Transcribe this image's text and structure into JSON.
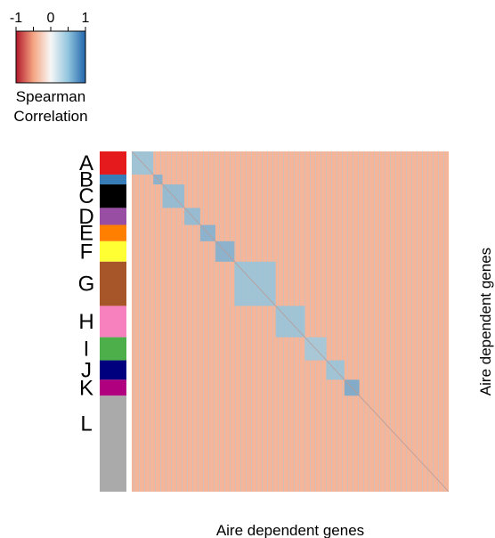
{
  "legend": {
    "title_line1": "Spearman",
    "title_line2": "Correlation",
    "ticks": [
      "-1",
      "0",
      "1"
    ],
    "tick_values": [
      -1,
      0,
      1
    ],
    "colors": [
      "#b2182b",
      "#f4a582",
      "#f7f7f7",
      "#92c5de",
      "#2166ac"
    ]
  },
  "chart_data": {
    "type": "heatmap",
    "title": "",
    "xlabel": "Aire dependent genes",
    "ylabel": "Aire dependent genes",
    "value_range": [
      -1,
      1
    ],
    "background_value": 0.05,
    "clusters": [
      {
        "label": "A",
        "color": "#e41a1c",
        "start": 0.0,
        "end": 0.068,
        "correlation": 0.5
      },
      {
        "label": "B",
        "color": "#377eb8",
        "start": 0.068,
        "end": 0.097,
        "correlation": 0.6
      },
      {
        "label": "C",
        "color": "#000000",
        "start": 0.097,
        "end": 0.166,
        "correlation": 0.55
      },
      {
        "label": "D",
        "color": "#984ea3",
        "start": 0.166,
        "end": 0.216,
        "correlation": 0.55
      },
      {
        "label": "E",
        "color": "#ff7f00",
        "start": 0.216,
        "end": 0.264,
        "correlation": 0.6
      },
      {
        "label": "F",
        "color": "#ffff33",
        "start": 0.264,
        "end": 0.324,
        "correlation": 0.6
      },
      {
        "label": "G",
        "color": "#a65628",
        "start": 0.324,
        "end": 0.454,
        "correlation": 0.5
      },
      {
        "label": "H",
        "color": "#f781bf",
        "start": 0.454,
        "end": 0.546,
        "correlation": 0.5
      },
      {
        "label": "I",
        "color": "#4daf4a",
        "start": 0.546,
        "end": 0.614,
        "correlation": 0.45
      },
      {
        "label": "J",
        "color": "#00007f",
        "start": 0.614,
        "end": 0.671,
        "correlation": 0.5
      },
      {
        "label": "K",
        "color": "#b0007f",
        "start": 0.671,
        "end": 0.718,
        "correlation": 0.65
      },
      {
        "label": "L",
        "color": "#aaaaaa",
        "start": 0.718,
        "end": 1.0,
        "correlation": 0.05
      }
    ],
    "diagonal_value": 1
  }
}
